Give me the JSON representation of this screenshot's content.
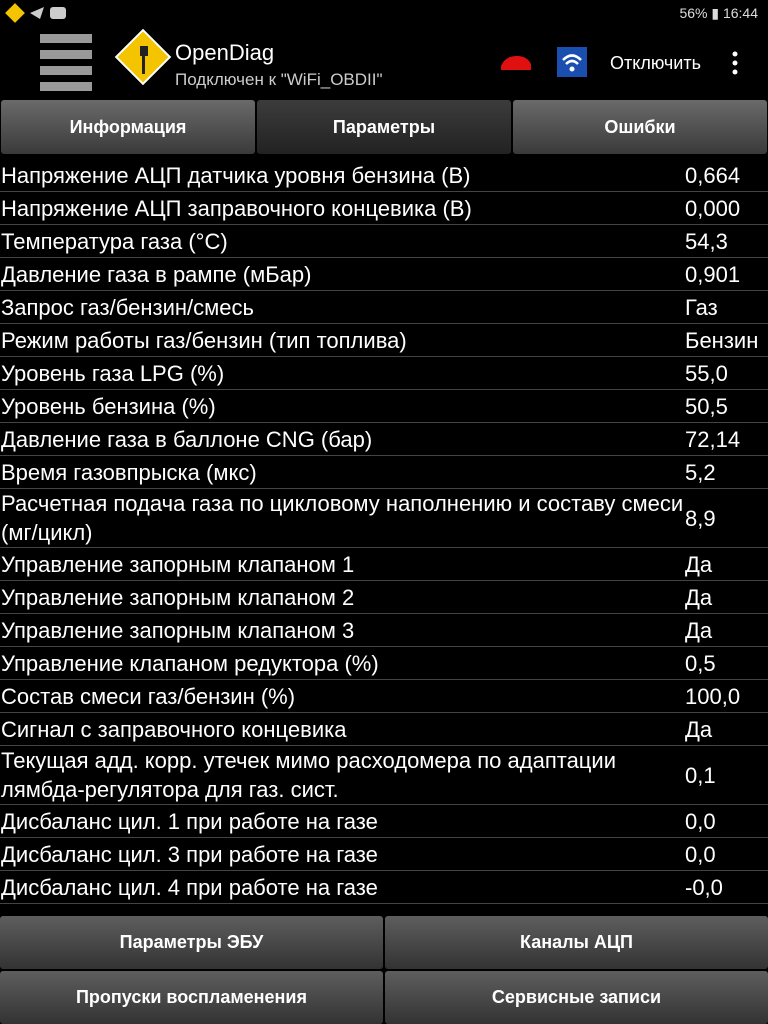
{
  "status_bar": {
    "battery": "56%",
    "time": "16:44"
  },
  "header": {
    "app_name": "OpenDiag",
    "status": "Подключен к \"WiFi_OBDII\"",
    "disconnect": "Отключить"
  },
  "tabs": [
    "Информация",
    "Параметры",
    "Ошибки"
  ],
  "rows": [
    [
      "Напряжение АЦП датчика уровня бензина (В)",
      "0,664"
    ],
    [
      "Напряжение АЦП заправочного концевика (В)",
      "0,000"
    ],
    [
      "Температура газа (°C)",
      "54,3"
    ],
    [
      "Давление газа в рампе (мБар)",
      "0,901"
    ],
    [
      "Запрос газ/бензин/смесь",
      "Газ"
    ],
    [
      "Режим работы газ/бензин (тип топлива)",
      "Бензин"
    ],
    [
      "Уровень газа LPG (%)",
      "55,0"
    ],
    [
      "Уровень бензина (%)",
      "50,5"
    ],
    [
      "Давление газа в баллоне CNG (бар)",
      "72,14"
    ],
    [
      "Время газовпрыска (мкс)",
      "5,2"
    ],
    [
      "Расчетная подача газа по цикловому наполнению и составу смеси (мг/цикл)",
      "8,9"
    ],
    [
      "Управление запорным клапаном 1",
      "Да"
    ],
    [
      "Управление запорным клапаном 2",
      "Да"
    ],
    [
      "Управление запорным клапаном 3",
      "Да"
    ],
    [
      "Управление клапаном редуктора (%)",
      "0,5"
    ],
    [
      "Состав смеси газ/бензин (%)",
      "100,0"
    ],
    [
      "Сигнал с заправочного концевика",
      "Да"
    ],
    [
      "Текущая адд. корр. утечек мимо расходомера по адаптации лямбда-регулятора для газ. сист.",
      "0,1"
    ],
    [
      "Дисбаланс цил. 1 при работе на газе",
      "0,0"
    ],
    [
      "Дисбаланс цил. 3 при работе на газе",
      "0,0"
    ],
    [
      "Дисбаланс цил. 4 при работе на газе",
      "-0,0"
    ]
  ],
  "buttons": [
    "Параметры ЭБУ",
    "Каналы АЦП",
    "Пропуски воспламенения",
    "Сервисные записи"
  ]
}
